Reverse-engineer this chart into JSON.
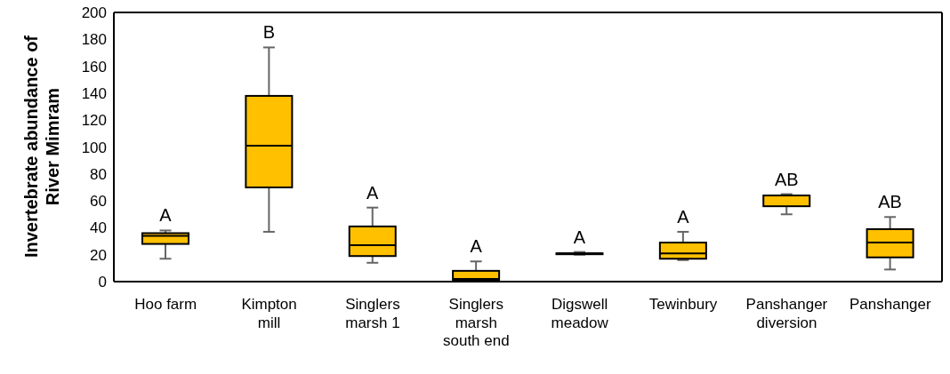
{
  "chart_data": {
    "type": "box",
    "ylabel": "Invertebrate abundance of River Mimram",
    "categories": [
      "Hoo farm",
      "Kimpton mill",
      "Singlers marsh 1",
      "Singlers marsh south end",
      "Digswell meadow",
      "Tewinbury",
      "Panshanger diversion",
      "Panshanger"
    ],
    "series": [
      {
        "color": "#ffc000",
        "boxes": [
          {
            "low": 17,
            "q1": 28,
            "median": 34,
            "q3": 36,
            "high": 38
          },
          {
            "low": 37,
            "q1": 70,
            "median": 101,
            "q3": 138,
            "high": 174
          },
          {
            "low": 14,
            "q1": 19,
            "median": 27,
            "q3": 41,
            "high": 55
          },
          {
            "low": 0,
            "q1": 1,
            "median": 2,
            "q3": 8,
            "high": 15
          },
          {
            "low": 20,
            "q1": 21,
            "median": 21,
            "q3": 21,
            "high": 22
          },
          {
            "low": 16,
            "q1": 17,
            "median": 21,
            "q3": 29,
            "high": 37
          },
          {
            "low": 50,
            "q1": 56,
            "median": 64,
            "q3": 64,
            "high": 65
          },
          {
            "low": 9,
            "q1": 18,
            "median": 29,
            "q3": 39,
            "high": 48
          }
        ]
      }
    ],
    "ylim": [
      0,
      200
    ],
    "yticks": [
      0,
      20,
      40,
      60,
      80,
      100,
      120,
      140,
      160,
      180,
      200
    ],
    "grid": false,
    "annotations": [
      "A",
      "B",
      "A",
      "A",
      "A",
      "A",
      "AB",
      "AB"
    ]
  }
}
